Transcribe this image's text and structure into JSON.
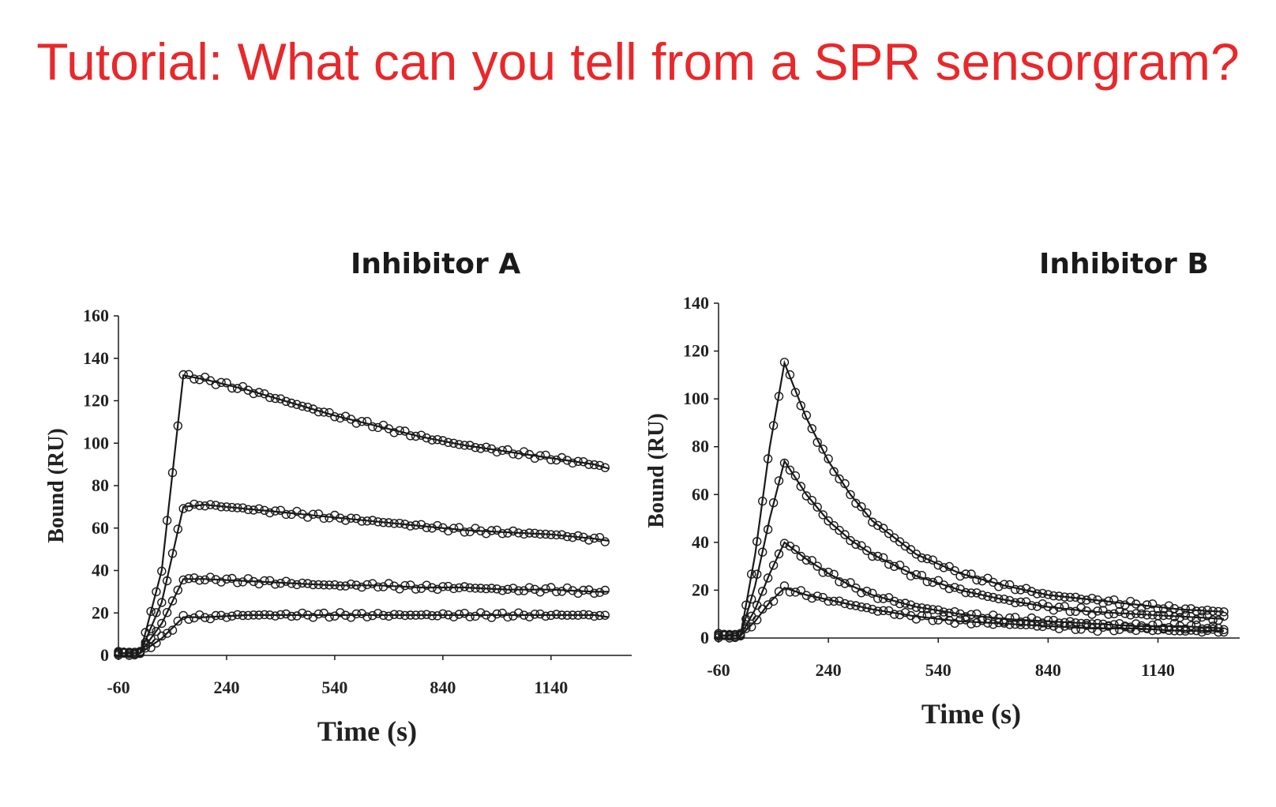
{
  "slide": {
    "title": "Tutorial: What can you tell from a SPR sensorgram?"
  },
  "colors": {
    "title": "#e8282b",
    "ink": "#1a1a1a"
  },
  "chart_data": [
    {
      "type": "line",
      "title": "Inhibitor A",
      "xlabel": "Time (s)",
      "ylabel": "Bound (RU)",
      "xlim": [
        -60,
        1320
      ],
      "ylim": [
        0,
        160
      ],
      "xticks": [
        -60,
        240,
        540,
        840,
        1140
      ],
      "yticks": [
        0,
        20,
        40,
        60,
        80,
        100,
        120,
        140,
        160
      ],
      "markers": "open-circle",
      "grid": false,
      "legend": "none",
      "series": [
        {
          "x": [
            -60,
            0,
            60,
            120,
            180,
            300,
            420,
            540,
            660,
            780,
            900,
            1020,
            1140,
            1260,
            1300
          ],
          "y": [
            1,
            1,
            40,
            132,
            130,
            125,
            119,
            113,
            108,
            103,
            99,
            96,
            93,
            90,
            88
          ]
        },
        {
          "x": [
            -60,
            0,
            60,
            120,
            180,
            300,
            420,
            540,
            660,
            780,
            900,
            1020,
            1140,
            1260,
            1300
          ],
          "y": [
            1,
            1,
            25,
            70,
            71,
            69,
            67,
            65,
            63,
            61,
            59,
            58,
            57,
            55,
            54
          ]
        },
        {
          "x": [
            -60,
            0,
            60,
            120,
            180,
            300,
            420,
            540,
            660,
            780,
            900,
            1020,
            1140,
            1260,
            1300
          ],
          "y": [
            1,
            1,
            15,
            36,
            36,
            35,
            34,
            33,
            33,
            32,
            32,
            31,
            31,
            30,
            30
          ]
        },
        {
          "x": [
            -60,
            0,
            60,
            120,
            180,
            300,
            420,
            540,
            660,
            780,
            900,
            1020,
            1140,
            1260,
            1300
          ],
          "y": [
            1,
            1,
            8,
            18,
            18,
            19,
            19,
            19,
            19,
            19,
            19,
            19,
            19,
            19,
            18
          ]
        }
      ]
    },
    {
      "type": "line",
      "title": "Inhibitor B",
      "xlabel": "Time (s)",
      "ylabel": "Bound (RU)",
      "xlim": [
        -60,
        1320
      ],
      "ylim": [
        0,
        140
      ],
      "xticks": [
        -60,
        240,
        540,
        840,
        1140
      ],
      "yticks": [
        0,
        20,
        40,
        60,
        80,
        100,
        120,
        140
      ],
      "markers": "open-circle",
      "grid": false,
      "legend": "none",
      "series": [
        {
          "x": [
            -60,
            0,
            40,
            80,
            120,
            180,
            240,
            300,
            360,
            480,
            600,
            720,
            840,
            960,
            1080,
            1200,
            1320
          ],
          "y": [
            1,
            1,
            35,
            80,
            115,
            92,
            74,
            60,
            49,
            35,
            27,
            22,
            18,
            16,
            14,
            12,
            11
          ]
        },
        {
          "x": [
            -60,
            0,
            40,
            80,
            120,
            180,
            240,
            300,
            360,
            480,
            600,
            720,
            840,
            960,
            1080,
            1200,
            1320
          ],
          "y": [
            1,
            1,
            22,
            50,
            74,
            60,
            49,
            41,
            35,
            26,
            20,
            16,
            13,
            11,
            10,
            9,
            8
          ]
        },
        {
          "x": [
            -60,
            0,
            40,
            80,
            120,
            180,
            240,
            300,
            360,
            480,
            600,
            720,
            840,
            960,
            1080,
            1200,
            1320
          ],
          "y": [
            1,
            1,
            12,
            27,
            40,
            33,
            27,
            22,
            18,
            13,
            10,
            8,
            7,
            6,
            5,
            5,
            4
          ]
        },
        {
          "x": [
            -60,
            0,
            40,
            80,
            120,
            180,
            240,
            300,
            360,
            480,
            600,
            720,
            840,
            960,
            1080,
            1200,
            1320
          ],
          "y": [
            1,
            1,
            7,
            15,
            21,
            18,
            16,
            14,
            12,
            9,
            7,
            6,
            5,
            4,
            4,
            3,
            3
          ]
        }
      ]
    }
  ]
}
